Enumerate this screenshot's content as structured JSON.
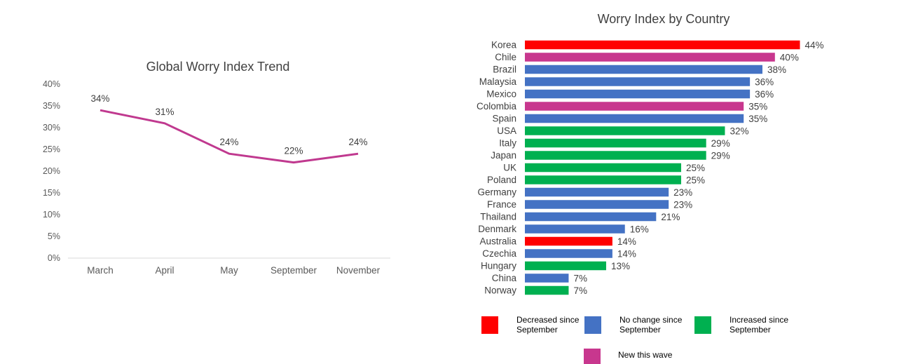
{
  "chart_data": [
    {
      "type": "line",
      "title": "Global Worry Index Trend",
      "categories": [
        "March",
        "April",
        "May",
        "September",
        "November"
      ],
      "values": [
        0.34,
        0.31,
        0.24,
        0.22,
        0.24
      ],
      "data_labels": [
        "34%",
        "31%",
        "24%",
        "22%",
        "24%"
      ],
      "yticks": [
        "0%",
        "5%",
        "10%",
        "15%",
        "20%",
        "25%",
        "30%",
        "35%",
        "40%"
      ],
      "ylim": [
        0,
        0.4
      ],
      "line_color": "#C0398F",
      "grid": false
    },
    {
      "type": "bar",
      "orientation": "horizontal",
      "title": "Worry Index by Country",
      "categories": [
        "Korea",
        "Chile",
        "Brazil",
        "Malaysia",
        "Mexico",
        "Colombia",
        "Spain",
        "USA",
        "Italy",
        "Japan",
        "UK",
        "Poland",
        "Germany",
        "France",
        "Thailand",
        "Denmark",
        "Australia",
        "Czechia",
        "Hungary",
        "China",
        "Norway"
      ],
      "values": [
        0.44,
        0.4,
        0.38,
        0.36,
        0.36,
        0.35,
        0.35,
        0.32,
        0.29,
        0.29,
        0.25,
        0.25,
        0.23,
        0.23,
        0.21,
        0.16,
        0.14,
        0.14,
        0.13,
        0.07,
        0.07
      ],
      "data_labels": [
        "44%",
        "40%",
        "38%",
        "36%",
        "36%",
        "35%",
        "35%",
        "32%",
        "29%",
        "29%",
        "25%",
        "25%",
        "23%",
        "23%",
        "21%",
        "16%",
        "14%",
        "14%",
        "13%",
        "7%",
        "7%"
      ],
      "status": [
        "decreased",
        "new",
        "no_change",
        "no_change",
        "no_change",
        "new",
        "no_change",
        "increased",
        "increased",
        "increased",
        "increased",
        "increased",
        "no_change",
        "no_change",
        "no_change",
        "no_change",
        "decreased",
        "no_change",
        "increased",
        "no_change",
        "increased"
      ],
      "legend": [
        {
          "key": "decreased",
          "label": "Decreased since September",
          "color": "#FF0000"
        },
        {
          "key": "no_change",
          "label": "No change since September",
          "color": "#4472C4"
        },
        {
          "key": "increased",
          "label": "Increased since September",
          "color": "#00B050"
        },
        {
          "key": "new",
          "label": "New this wave",
          "color": "#C8378E"
        }
      ],
      "legend_placement": "bottom",
      "grid": false
    }
  ]
}
